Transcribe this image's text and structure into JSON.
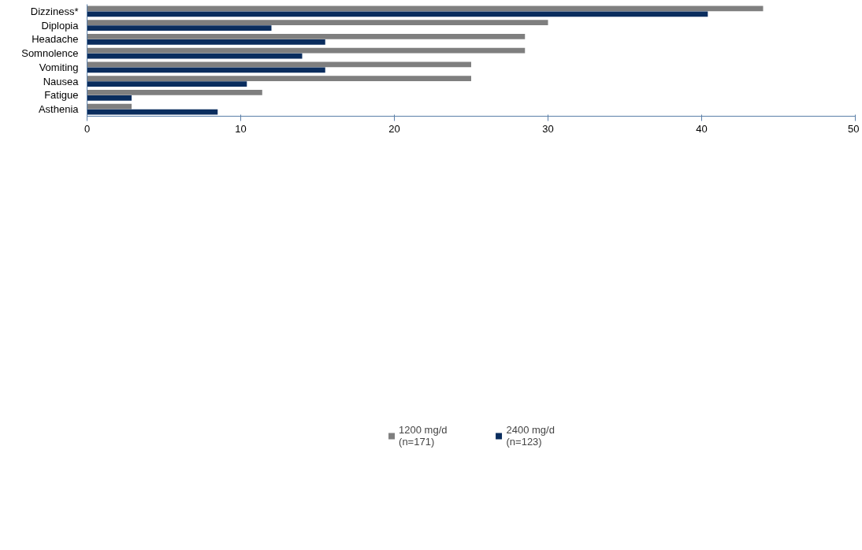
{
  "chart_data": {
    "type": "bar",
    "orientation": "horizontal",
    "categories": [
      "Dizziness*",
      "Diplopia",
      "Headache",
      "Somnolence",
      "Vomiting",
      "Nausea",
      "Fatigue",
      "Asthenia"
    ],
    "series": [
      {
        "name": "1200 mg/d\n(n=171)",
        "color": "#7f7f7f",
        "values": [
          44.0,
          30.0,
          28.5,
          28.5,
          25.0,
          25.0,
          11.4,
          2.9
        ]
      },
      {
        "name": "2400 mg/d\n(n=123)",
        "color": "#0a2d5e",
        "values": [
          40.4,
          12.0,
          15.5,
          14.0,
          15.5,
          10.4,
          2.9,
          8.5
        ]
      }
    ],
    "xlim": [
      0,
      50
    ],
    "xticks": [
      0,
      10,
      20,
      30,
      40,
      50
    ],
    "grid": false,
    "legend": "bottom"
  }
}
